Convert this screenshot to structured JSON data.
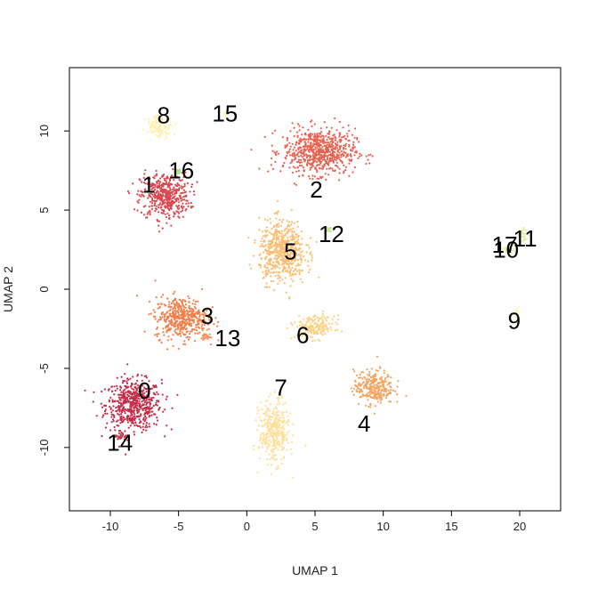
{
  "chart_data": {
    "type": "scatter",
    "title": "",
    "xlabel": "UMAP 1",
    "ylabel": "UMAP 2",
    "xlim": [
      -13,
      23
    ],
    "ylim": [
      -14,
      14
    ],
    "xticks": [
      -10,
      -5,
      0,
      5,
      10,
      15,
      20
    ],
    "yticks": [
      -10,
      -5,
      0,
      5,
      10
    ],
    "grid": false,
    "legend": "none",
    "clusters": [
      {
        "label": "0",
        "color": "#c42c4a",
        "center": [
          -8.3,
          -7.3
        ],
        "spread": [
          1.7,
          1.3
        ],
        "label_pos": [
          -7.5,
          -6.4
        ]
      },
      {
        "label": "1",
        "color": "#d9474e",
        "center": [
          -6.0,
          5.9
        ],
        "spread": [
          1.5,
          1.2
        ],
        "label_pos": [
          -7.2,
          6.6
        ]
      },
      {
        "label": "2",
        "color": "#e9604f",
        "center": [
          5.3,
          8.7
        ],
        "spread": [
          2.2,
          1.2
        ],
        "label_pos": [
          5.1,
          6.3
        ]
      },
      {
        "label": "3",
        "color": "#f27f4b",
        "center": [
          -4.8,
          -1.8
        ],
        "spread": [
          1.6,
          1.1
        ],
        "label_pos": [
          -2.9,
          -1.7
        ]
      },
      {
        "label": "4",
        "color": "#f7a25c",
        "center": [
          9.3,
          -6.2
        ],
        "spread": [
          1.2,
          0.9
        ],
        "label_pos": [
          8.6,
          -8.5
        ]
      },
      {
        "label": "5",
        "color": "#fbbd6f",
        "center": [
          2.6,
          2.4
        ],
        "spread": [
          1.4,
          1.6
        ],
        "label_pos": [
          3.2,
          2.4
        ]
      },
      {
        "label": "6",
        "color": "#fdd182",
        "center": [
          5.0,
          -2.4
        ],
        "spread": [
          1.2,
          0.6
        ],
        "label_pos": [
          4.1,
          -2.9
        ]
      },
      {
        "label": "7",
        "color": "#fee09a",
        "center": [
          2.0,
          -9.0
        ],
        "spread": [
          0.9,
          1.6
        ],
        "label_pos": [
          2.5,
          -6.2
        ]
      },
      {
        "label": "8",
        "color": "#fff0b0",
        "center": [
          -6.4,
          10.3
        ],
        "spread": [
          0.8,
          0.6
        ],
        "label_pos": [
          -6.1,
          11.0
        ]
      },
      {
        "label": "9",
        "color": "#f9f7b4",
        "center": [
          19.8,
          -1.6
        ],
        "spread": [
          0.15,
          0.4
        ],
        "label_pos": [
          19.6,
          -2.0
        ]
      },
      {
        "label": "10",
        "color": "#eef6a8",
        "center": [
          19.4,
          2.6
        ],
        "spread": [
          0.3,
          0.3
        ],
        "label_pos": [
          19.0,
          2.5
        ]
      },
      {
        "label": "11",
        "color": "#dbef9c",
        "center": [
          20.3,
          3.4
        ],
        "spread": [
          0.3,
          0.4
        ],
        "label_pos": [
          20.4,
          3.2
        ]
      },
      {
        "label": "12",
        "color": "#c6e893",
        "center": [
          6.0,
          3.8
        ],
        "spread": [
          0.15,
          0.15
        ],
        "label_pos": [
          6.2,
          3.5
        ]
      },
      {
        "label": "13",
        "color": "#f58d55",
        "center": [
          -3.0,
          -2.9
        ],
        "spread": [
          0.3,
          0.3
        ],
        "label_pos": [
          -1.4,
          -3.1
        ]
      },
      {
        "label": "14",
        "color": "#cc3a4b",
        "center": [
          -9.2,
          -9.3
        ],
        "spread": [
          0.4,
          0.3
        ],
        "label_pos": [
          -9.3,
          -9.7
        ]
      },
      {
        "label": "15",
        "color": "#fff5c0",
        "center": [
          -1.6,
          11.1
        ],
        "spread": [
          0.1,
          0.1
        ],
        "label_pos": [
          -1.6,
          11.1
        ]
      },
      {
        "label": "16",
        "color": "#b4e18c",
        "center": [
          -5.0,
          7.4
        ],
        "spread": [
          0.15,
          0.15
        ],
        "label_pos": [
          -4.8,
          7.5
        ]
      },
      {
        "label": "17",
        "color": "#e6f5a4",
        "center": [
          19.0,
          2.5
        ],
        "spread": [
          0.2,
          0.2
        ],
        "label_pos": [
          18.9,
          2.8
        ]
      }
    ]
  }
}
